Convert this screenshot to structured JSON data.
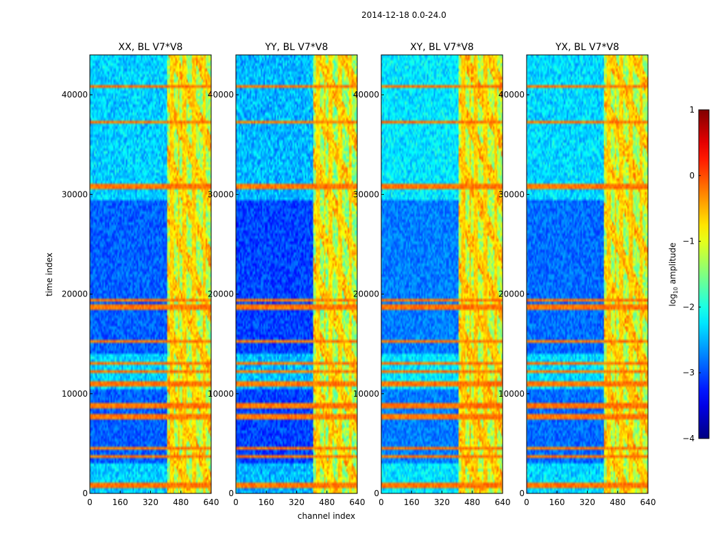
{
  "chart_data": {
    "type": "heatmap",
    "suptitle": "2014-12-18 0.0-24.0",
    "xlabel": "channel index",
    "ylabel": "time index",
    "xlim": [
      0,
      640
    ],
    "ylim": [
      0,
      44000
    ],
    "x_ticks": [
      "0",
      "160",
      "320",
      "480",
      "640"
    ],
    "y_ticks": [
      "0",
      "10000",
      "20000",
      "30000",
      "40000"
    ],
    "panels": [
      {
        "title": "XX, BL V7*V8",
        "level_scale": 1.0
      },
      {
        "title": "YY, BL V7*V8",
        "level_scale": 1.05
      },
      {
        "title": "XY, BL V7*V8",
        "level_scale": 0.95
      },
      {
        "title": "YX, BL V7*V8",
        "level_scale": 0.98
      }
    ],
    "colorbar": {
      "label_prefix": "log",
      "label_sub": "10",
      "label_suffix": " amplitude",
      "range": [
        -4,
        1
      ],
      "ticks": [
        "1",
        "0",
        "−1",
        "−2",
        "−3",
        "−4"
      ],
      "colormap": "jet"
    },
    "features": {
      "rfi_band_channels": [
        410,
        640
      ],
      "bright_columns": [
        [
          420,
          440
        ],
        [
          462,
          470
        ],
        [
          486,
          510
        ],
        [
          540,
          560
        ],
        [
          600,
          610
        ]
      ],
      "flagged_rows": [
        40900,
        37300,
        30800,
        19400,
        18700,
        15300,
        13000,
        12300,
        11000,
        8800,
        7700,
        4500,
        3700,
        800
      ],
      "noisy_time_ranges": [
        [
          29500,
          44000
        ],
        [
          10500,
          14000
        ],
        [
          0,
          3000
        ]
      ]
    }
  }
}
